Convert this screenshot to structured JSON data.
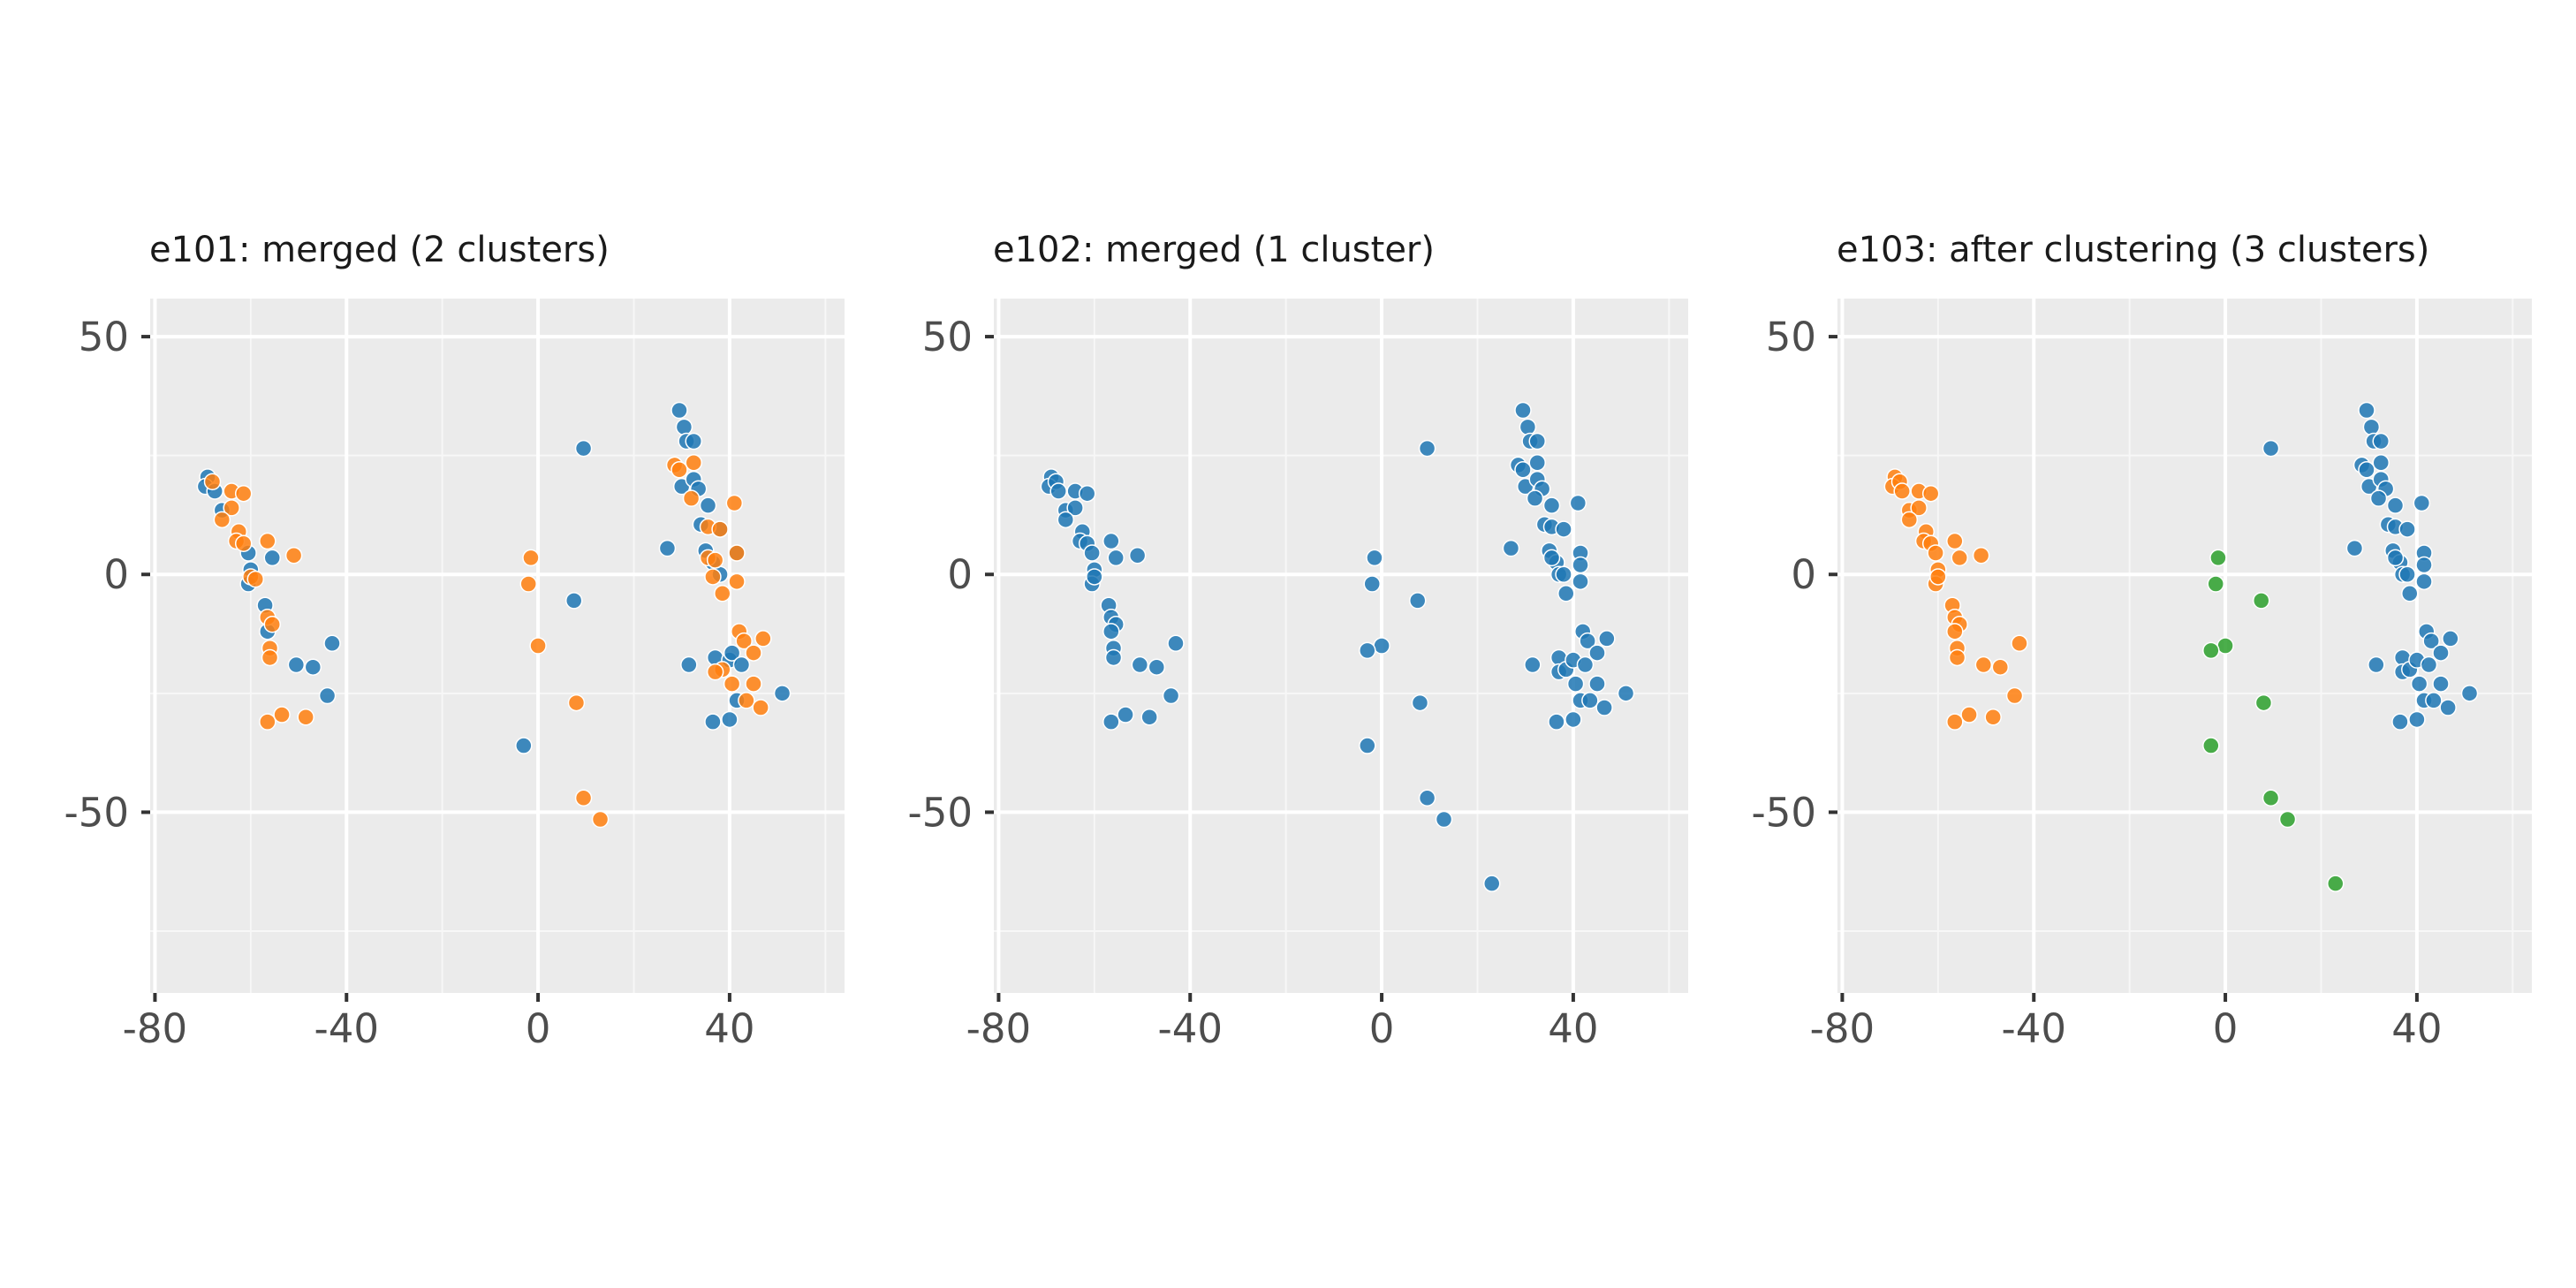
{
  "chart_data": [
    {
      "type": "scatter",
      "title": "e101: merged (2 clusters)",
      "xlabel": "",
      "ylabel": "",
      "xlim": [
        -81,
        64
      ],
      "ylim": [
        -88,
        58
      ],
      "xticks": [
        -80,
        -40,
        0,
        40
      ],
      "yticks": [
        -50,
        0,
        50
      ],
      "xtick_labels": [
        "-80",
        "-40",
        "0",
        "40"
      ],
      "ytick_labels": [
        "-50",
        "0",
        "50"
      ],
      "grid": true,
      "legend": "none",
      "series": [
        {
          "color": "#1f77b4",
          "points": [
            [
              -69,
              20.5
            ],
            [
              -69.5,
              18.5
            ],
            [
              -67.5,
              17.5
            ],
            [
              -66,
              13.5
            ],
            [
              -60.5,
              4.5
            ],
            [
              -60,
              1
            ],
            [
              -60.5,
              -2
            ],
            [
              -57,
              -6.5
            ],
            [
              -56.5,
              -12
            ],
            [
              -55.5,
              3.5
            ],
            [
              -50.5,
              -19
            ],
            [
              -47,
              -19.5
            ],
            [
              -43,
              -14.5
            ],
            [
              -44,
              -25.5
            ],
            [
              9.5,
              26.5
            ],
            [
              7.5,
              -5.5
            ],
            [
              -3,
              -36
            ],
            [
              29.5,
              34.5
            ],
            [
              30.5,
              31
            ],
            [
              31,
              28
            ],
            [
              32.5,
              28
            ],
            [
              30,
              18.5
            ],
            [
              32.5,
              20
            ],
            [
              33.5,
              18
            ],
            [
              35.5,
              14.5
            ],
            [
              34,
              10.5
            ],
            [
              38,
              9.5
            ],
            [
              35,
              5
            ],
            [
              36.5,
              2.5
            ],
            [
              38,
              0
            ],
            [
              27,
              5.5
            ],
            [
              41.5,
              4.5
            ],
            [
              31.5,
              -19
            ],
            [
              37,
              -17.5
            ],
            [
              40,
              -18
            ],
            [
              40.5,
              -16.5
            ],
            [
              42.5,
              -19
            ],
            [
              41.5,
              -26.5
            ],
            [
              36.5,
              -31
            ],
            [
              40,
              -30.5
            ],
            [
              51,
              -25
            ]
          ]
        },
        {
          "color": "#ff7f0e",
          "points": [
            [
              -68,
              19.5
            ],
            [
              -64,
              17.5
            ],
            [
              -61.5,
              17
            ],
            [
              -64,
              14
            ],
            [
              -66,
              11.5
            ],
            [
              -62.5,
              9
            ],
            [
              -63,
              7
            ],
            [
              -61.5,
              6.5
            ],
            [
              -60,
              -0.5
            ],
            [
              -59,
              -1
            ],
            [
              -56.5,
              7
            ],
            [
              -51,
              4
            ],
            [
              -56.5,
              -9
            ],
            [
              -55.5,
              -10.5
            ],
            [
              -56,
              -15.5
            ],
            [
              -56,
              -17.5
            ],
            [
              -56.5,
              -31
            ],
            [
              -53.5,
              -29.5
            ],
            [
              -48.5,
              -30
            ],
            [
              -1.5,
              3.5
            ],
            [
              -2,
              -2
            ],
            [
              0,
              -15
            ],
            [
              8,
              -27
            ],
            [
              9.5,
              -47
            ],
            [
              13,
              -51.5
            ],
            [
              28.5,
              23
            ],
            [
              29.5,
              22
            ],
            [
              32.5,
              23.5
            ],
            [
              32,
              16
            ],
            [
              35.5,
              10
            ],
            [
              38,
              9.5
            ],
            [
              35.5,
              3.5
            ],
            [
              36.5,
              -0.5
            ],
            [
              37,
              3
            ],
            [
              38.5,
              -4
            ],
            [
              41,
              15
            ],
            [
              41.5,
              4.5
            ],
            [
              41.5,
              -1.5
            ],
            [
              42,
              -12
            ],
            [
              43,
              -14
            ],
            [
              45,
              -16.5
            ],
            [
              47,
              -13.5
            ],
            [
              45,
              -23
            ],
            [
              43.5,
              -26.5
            ],
            [
              46.5,
              -28
            ],
            [
              38.5,
              -20
            ],
            [
              40.5,
              -23
            ],
            [
              37,
              -20.5
            ]
          ]
        }
      ]
    },
    {
      "type": "scatter",
      "title": "e102: merged (1 cluster)",
      "xlabel": "",
      "ylabel": "",
      "xlim": [
        -81,
        64
      ],
      "ylim": [
        -88,
        58
      ],
      "xticks": [
        -80,
        -40,
        0,
        40
      ],
      "yticks": [
        -50,
        0,
        50
      ],
      "xtick_labels": [
        "-80",
        "-40",
        "0",
        "40"
      ],
      "ytick_labels": [
        "-50",
        "0",
        "50"
      ],
      "grid": true,
      "legend": "none",
      "series": [
        {
          "color": "#1f77b4",
          "points": [
            [
              -69,
              20.5
            ],
            [
              -69.5,
              18.5
            ],
            [
              -68,
              19.5
            ],
            [
              -67.5,
              17.5
            ],
            [
              -66,
              13.5
            ],
            [
              -64,
              17.5
            ],
            [
              -61.5,
              17
            ],
            [
              -64,
              14
            ],
            [
              -66,
              11.5
            ],
            [
              -62.5,
              9
            ],
            [
              -63,
              7
            ],
            [
              -61.5,
              6.5
            ],
            [
              -60.5,
              4.5
            ],
            [
              -60,
              1
            ],
            [
              -60.5,
              -2
            ],
            [
              -60,
              -0.5
            ],
            [
              -56.5,
              7
            ],
            [
              -55.5,
              3.5
            ],
            [
              -51,
              4
            ],
            [
              -57,
              -6.5
            ],
            [
              -56.5,
              -9
            ],
            [
              -55.5,
              -10.5
            ],
            [
              -56.5,
              -12
            ],
            [
              -56,
              -15.5
            ],
            [
              -56,
              -17.5
            ],
            [
              -50.5,
              -19
            ],
            [
              -47,
              -19.5
            ],
            [
              -43,
              -14.5
            ],
            [
              -44,
              -25.5
            ],
            [
              -56.5,
              -31
            ],
            [
              -53.5,
              -29.5
            ],
            [
              -48.5,
              -30
            ],
            [
              9.5,
              26.5
            ],
            [
              -1.5,
              3.5
            ],
            [
              -2,
              -2
            ],
            [
              0,
              -15
            ],
            [
              -3,
              -16
            ],
            [
              7.5,
              -5.5
            ],
            [
              8,
              -27
            ],
            [
              -3,
              -36
            ],
            [
              9.5,
              -47
            ],
            [
              13,
              -51.5
            ],
            [
              23,
              -65
            ],
            [
              29.5,
              34.5
            ],
            [
              30.5,
              31
            ],
            [
              31,
              28
            ],
            [
              32.5,
              28
            ],
            [
              28.5,
              23
            ],
            [
              29.5,
              22
            ],
            [
              32.5,
              23.5
            ],
            [
              30,
              18.5
            ],
            [
              32.5,
              20
            ],
            [
              33.5,
              18
            ],
            [
              32,
              16
            ],
            [
              35.5,
              14.5
            ],
            [
              34,
              10.5
            ],
            [
              35.5,
              10
            ],
            [
              38,
              9.5
            ],
            [
              27,
              5.5
            ],
            [
              35,
              5
            ],
            [
              36.5,
              2.5
            ],
            [
              35.5,
              3.5
            ],
            [
              37,
              0
            ],
            [
              38,
              0
            ],
            [
              38.5,
              -4
            ],
            [
              41,
              15
            ],
            [
              41.5,
              4.5
            ],
            [
              41.5,
              2
            ],
            [
              41.5,
              -1.5
            ],
            [
              42,
              -12
            ],
            [
              43,
              -14
            ],
            [
              45,
              -16.5
            ],
            [
              47,
              -13.5
            ],
            [
              31.5,
              -19
            ],
            [
              37,
              -17.5
            ],
            [
              37,
              -20.5
            ],
            [
              38.5,
              -20
            ],
            [
              40,
              -18
            ],
            [
              40.5,
              -23
            ],
            [
              42.5,
              -19
            ],
            [
              45,
              -23
            ],
            [
              41.5,
              -26.5
            ],
            [
              43.5,
              -26.5
            ],
            [
              46.5,
              -28
            ],
            [
              36.5,
              -31
            ],
            [
              40,
              -30.5
            ],
            [
              51,
              -25
            ]
          ]
        }
      ]
    },
    {
      "type": "scatter",
      "title": "e103: after clustering (3 clusters)",
      "xlabel": "",
      "ylabel": "",
      "xlim": [
        -81,
        64
      ],
      "ylim": [
        -88,
        58
      ],
      "xticks": [
        -80,
        -40,
        0,
        40
      ],
      "yticks": [
        -50,
        0,
        50
      ],
      "xtick_labels": [
        "-80",
        "-40",
        "0",
        "40"
      ],
      "ytick_labels": [
        "-50",
        "0",
        "50"
      ],
      "grid": true,
      "legend": "none",
      "series": [
        {
          "color": "#ff7f0e",
          "points": [
            [
              -69,
              20.5
            ],
            [
              -69.5,
              18.5
            ],
            [
              -68,
              19.5
            ],
            [
              -67.5,
              17.5
            ],
            [
              -66,
              13.5
            ],
            [
              -64,
              17.5
            ],
            [
              -61.5,
              17
            ],
            [
              -64,
              14
            ],
            [
              -66,
              11.5
            ],
            [
              -62.5,
              9
            ],
            [
              -63,
              7
            ],
            [
              -61.5,
              6.5
            ],
            [
              -60.5,
              4.5
            ],
            [
              -60,
              1
            ],
            [
              -60.5,
              -2
            ],
            [
              -60,
              -0.5
            ],
            [
              -56.5,
              7
            ],
            [
              -55.5,
              3.5
            ],
            [
              -51,
              4
            ],
            [
              -57,
              -6.5
            ],
            [
              -56.5,
              -9
            ],
            [
              -55.5,
              -10.5
            ],
            [
              -56.5,
              -12
            ],
            [
              -56,
              -15.5
            ],
            [
              -56,
              -17.5
            ],
            [
              -50.5,
              -19
            ],
            [
              -47,
              -19.5
            ],
            [
              -43,
              -14.5
            ],
            [
              -44,
              -25.5
            ],
            [
              -56.5,
              -31
            ],
            [
              -53.5,
              -29.5
            ],
            [
              -48.5,
              -30
            ]
          ]
        },
        {
          "color": "#2ca02c",
          "points": [
            [
              -1.5,
              3.5
            ],
            [
              -2,
              -2
            ],
            [
              0,
              -15
            ],
            [
              -3,
              -16
            ],
            [
              7.5,
              -5.5
            ],
            [
              8,
              -27
            ],
            [
              -3,
              -36
            ],
            [
              9.5,
              -47
            ],
            [
              13,
              -51.5
            ],
            [
              23,
              -65
            ]
          ]
        },
        {
          "color": "#1f77b4",
          "points": [
            [
              9.5,
              26.5
            ],
            [
              29.5,
              34.5
            ],
            [
              30.5,
              31
            ],
            [
              31,
              28
            ],
            [
              32.5,
              28
            ],
            [
              28.5,
              23
            ],
            [
              29.5,
              22
            ],
            [
              32.5,
              23.5
            ],
            [
              30,
              18.5
            ],
            [
              32.5,
              20
            ],
            [
              33.5,
              18
            ],
            [
              32,
              16
            ],
            [
              35.5,
              14.5
            ],
            [
              34,
              10.5
            ],
            [
              35.5,
              10
            ],
            [
              38,
              9.5
            ],
            [
              27,
              5.5
            ],
            [
              35,
              5
            ],
            [
              36.5,
              2.5
            ],
            [
              35.5,
              3.5
            ],
            [
              37,
              0
            ],
            [
              38,
              0
            ],
            [
              38.5,
              -4
            ],
            [
              41,
              15
            ],
            [
              41.5,
              4.5
            ],
            [
              41.5,
              2
            ],
            [
              41.5,
              -1.5
            ],
            [
              42,
              -12
            ],
            [
              43,
              -14
            ],
            [
              45,
              -16.5
            ],
            [
              47,
              -13.5
            ],
            [
              31.5,
              -19
            ],
            [
              37,
              -17.5
            ],
            [
              37,
              -20.5
            ],
            [
              38.5,
              -20
            ],
            [
              40,
              -18
            ],
            [
              40.5,
              -23
            ],
            [
              42.5,
              -19
            ],
            [
              45,
              -23
            ],
            [
              41.5,
              -26.5
            ],
            [
              43.5,
              -26.5
            ],
            [
              46.5,
              -28
            ],
            [
              36.5,
              -31
            ],
            [
              40,
              -30.5
            ],
            [
              51,
              -25
            ]
          ]
        }
      ]
    }
  ]
}
